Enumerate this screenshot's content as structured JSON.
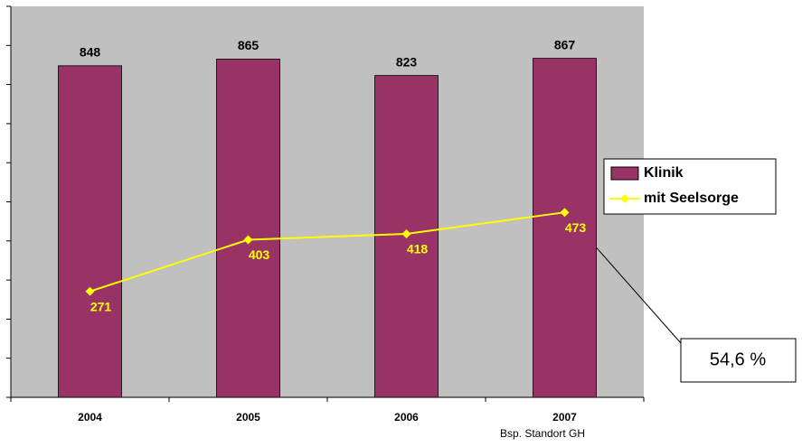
{
  "chart_data": {
    "type": "bar_line",
    "categories": [
      "2004",
      "2005",
      "2006",
      "2007"
    ],
    "series": [
      {
        "name": "Klinik",
        "type": "bar",
        "color": "#993366",
        "values": [
          848,
          865,
          823,
          867
        ]
      },
      {
        "name": "mit Seelsorge",
        "type": "line",
        "color": "#ffff00",
        "values": [
          271,
          403,
          418,
          473
        ]
      }
    ],
    "ylim": [
      0,
      1000
    ],
    "yticks": [
      0,
      100,
      200,
      300,
      400,
      500,
      600,
      700,
      800,
      900,
      1000
    ],
    "legend": "right",
    "annotation": "54,6 %",
    "source": "Bsp. Standort GH"
  }
}
